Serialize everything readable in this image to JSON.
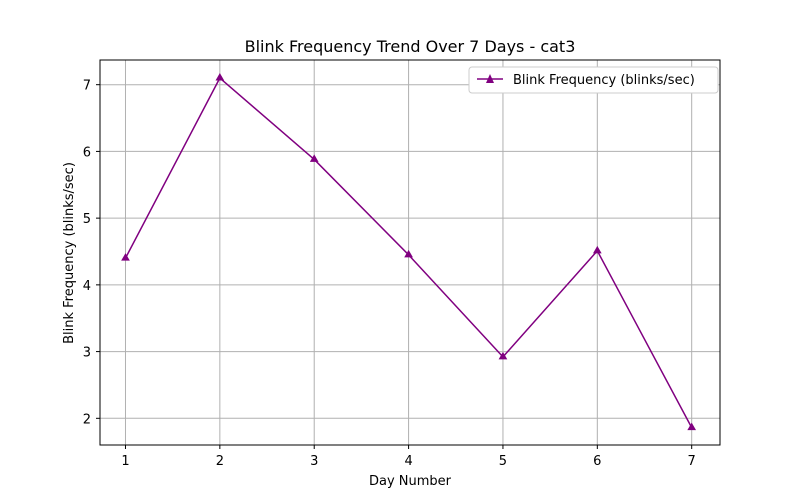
{
  "chart_data": {
    "type": "line",
    "title": "Blink Frequency Trend Over 7 Days - cat3",
    "xlabel": "Day Number",
    "ylabel": "Blink Frequency (blinks/sec)",
    "x": [
      1,
      2,
      3,
      4,
      5,
      6,
      7
    ],
    "series": [
      {
        "name": "Blink Frequency (blinks/sec)",
        "values": [
          4.4,
          7.1,
          5.88,
          4.45,
          2.92,
          4.51,
          1.86
        ],
        "color": "#800080",
        "marker": "triangle-up"
      }
    ],
    "xticks": [
      "1",
      "2",
      "3",
      "4",
      "5",
      "6",
      "7"
    ],
    "yticks": [
      "2",
      "3",
      "4",
      "5",
      "6",
      "7"
    ],
    "xlim": [
      0.73,
      7.3
    ],
    "ylim": [
      1.6,
      7.37
    ],
    "grid": true,
    "legend_position": "upper right"
  }
}
